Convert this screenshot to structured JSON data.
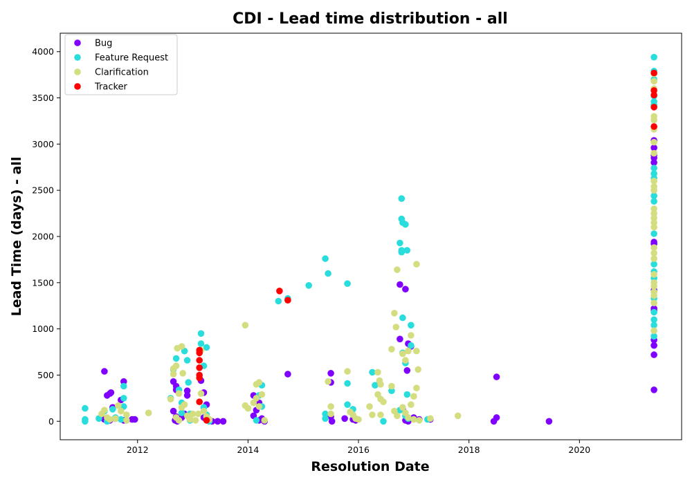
{
  "chart_data": {
    "type": "scatter",
    "title": "CDI - Lead time distribution - all",
    "xlabel": "Resolution Date",
    "ylabel": "Lead Time (days) - all",
    "xlim": [
      2010.6,
      2021.85
    ],
    "ylim": [
      -200,
      4200
    ],
    "xticks": [
      2012,
      2014,
      2016,
      2018,
      2020
    ],
    "yticks": [
      0,
      500,
      1000,
      1500,
      2000,
      2500,
      3000,
      3500,
      4000
    ],
    "grid": false,
    "legend_position": "top-left",
    "series": [
      {
        "name": "Bug",
        "color": "#8000ff",
        "points": [
          [
            2011.4,
            540
          ],
          [
            2011.45,
            280
          ],
          [
            2011.5,
            300
          ],
          [
            2011.52,
            310
          ],
          [
            2011.4,
            20
          ],
          [
            2011.5,
            10
          ],
          [
            2011.6,
            30
          ],
          [
            2011.55,
            150
          ],
          [
            2011.75,
            430
          ],
          [
            2011.7,
            230
          ],
          [
            2011.75,
            10
          ],
          [
            2011.9,
            20
          ],
          [
            2011.95,
            20
          ],
          [
            2012.65,
            430
          ],
          [
            2012.7,
            380
          ],
          [
            2012.7,
            340
          ],
          [
            2012.65,
            110
          ],
          [
            2012.7,
            50
          ],
          [
            2012.68,
            10
          ],
          [
            2012.72,
            0
          ],
          [
            2012.8,
            40
          ],
          [
            2012.9,
            330
          ],
          [
            2012.9,
            280
          ],
          [
            2012.95,
            20
          ],
          [
            2012.85,
            80
          ],
          [
            2013.15,
            440
          ],
          [
            2013.2,
            310
          ],
          [
            2013.25,
            180
          ],
          [
            2013.2,
            40
          ],
          [
            2013.3,
            10
          ],
          [
            2013.35,
            0
          ],
          [
            2013.45,
            0
          ],
          [
            2013.55,
            0
          ],
          [
            2014.1,
            280
          ],
          [
            2014.15,
            120
          ],
          [
            2014.2,
            200
          ],
          [
            2014.1,
            60
          ],
          [
            2014.2,
            10
          ],
          [
            2014.25,
            30
          ],
          [
            2014.3,
            0
          ],
          [
            2014.72,
            510
          ],
          [
            2015.5,
            520
          ],
          [
            2015.5,
            420
          ],
          [
            2015.5,
            50
          ],
          [
            2015.52,
            0
          ],
          [
            2015.75,
            30
          ],
          [
            2015.9,
            20
          ],
          [
            2015.95,
            10
          ],
          [
            2016.75,
            1480
          ],
          [
            2016.85,
            1430
          ],
          [
            2016.75,
            890
          ],
          [
            2016.9,
            840
          ],
          [
            2016.95,
            810
          ],
          [
            2016.88,
            550
          ],
          [
            2016.8,
            130
          ],
          [
            2016.85,
            10
          ],
          [
            2016.9,
            0
          ],
          [
            2017.0,
            40
          ],
          [
            2017.1,
            20
          ],
          [
            2017.3,
            20
          ],
          [
            2018.5,
            480
          ],
          [
            2018.5,
            40
          ],
          [
            2018.45,
            0
          ],
          [
            2019.45,
            0
          ],
          [
            2021.35,
            3040
          ],
          [
            2021.35,
            2960
          ],
          [
            2021.35,
            2880
          ],
          [
            2021.35,
            2850
          ],
          [
            2021.35,
            2800
          ],
          [
            2021.35,
            1940
          ],
          [
            2021.35,
            1920
          ],
          [
            2021.35,
            1420
          ],
          [
            2021.35,
            1220
          ],
          [
            2021.35,
            1200
          ],
          [
            2021.35,
            880
          ],
          [
            2021.35,
            820
          ],
          [
            2021.35,
            720
          ],
          [
            2021.35,
            340
          ]
        ]
      },
      {
        "name": "Feature Request",
        "color": "#2adddd",
        "points": [
          [
            2011.05,
            140
          ],
          [
            2011.05,
            20
          ],
          [
            2011.05,
            0
          ],
          [
            2011.3,
            30
          ],
          [
            2011.4,
            110
          ],
          [
            2011.45,
            0
          ],
          [
            2011.55,
            130
          ],
          [
            2011.6,
            40
          ],
          [
            2011.75,
            380
          ],
          [
            2011.75,
            250
          ],
          [
            2011.75,
            160
          ],
          [
            2011.7,
            20
          ],
          [
            2011.8,
            10
          ],
          [
            2012.6,
            250
          ],
          [
            2012.65,
            560
          ],
          [
            2012.7,
            680
          ],
          [
            2012.75,
            340
          ],
          [
            2012.8,
            200
          ],
          [
            2012.8,
            90
          ],
          [
            2012.85,
            760
          ],
          [
            2012.9,
            660
          ],
          [
            2012.92,
            420
          ],
          [
            2012.95,
            80
          ],
          [
            2012.95,
            10
          ],
          [
            2013.15,
            950
          ],
          [
            2013.15,
            840
          ],
          [
            2013.2,
            600
          ],
          [
            2013.25,
            800
          ],
          [
            2013.2,
            150
          ],
          [
            2013.25,
            70
          ],
          [
            2013.3,
            0
          ],
          [
            2014.15,
            10
          ],
          [
            2014.25,
            390
          ],
          [
            2014.2,
            280
          ],
          [
            2014.25,
            160
          ],
          [
            2014.55,
            1300
          ],
          [
            2014.72,
            1330
          ],
          [
            2015.1,
            1470
          ],
          [
            2015.4,
            1760
          ],
          [
            2015.45,
            1600
          ],
          [
            2015.4,
            80
          ],
          [
            2015.4,
            30
          ],
          [
            2015.8,
            1490
          ],
          [
            2015.8,
            410
          ],
          [
            2015.8,
            180
          ],
          [
            2015.9,
            130
          ],
          [
            2016.25,
            530
          ],
          [
            2016.3,
            390
          ],
          [
            2016.45,
            0
          ],
          [
            2016.6,
            330
          ],
          [
            2016.78,
            2410
          ],
          [
            2016.78,
            2190
          ],
          [
            2016.8,
            2150
          ],
          [
            2016.85,
            2130
          ],
          [
            2016.75,
            1930
          ],
          [
            2016.78,
            1850
          ],
          [
            2016.78,
            1830
          ],
          [
            2016.88,
            1850
          ],
          [
            2016.8,
            1120
          ],
          [
            2016.95,
            1040
          ],
          [
            2016.8,
            740
          ],
          [
            2016.85,
            630
          ],
          [
            2016.88,
            290
          ],
          [
            2016.75,
            120
          ],
          [
            2016.85,
            60
          ],
          [
            2016.9,
            30
          ],
          [
            2016.95,
            820
          ],
          [
            2017.25,
            20
          ],
          [
            2021.35,
            3940
          ],
          [
            2021.35,
            3790
          ],
          [
            2021.35,
            3700
          ],
          [
            2021.35,
            3520
          ],
          [
            2021.35,
            3460
          ],
          [
            2021.35,
            3420
          ],
          [
            2021.35,
            2740
          ],
          [
            2021.35,
            2680
          ],
          [
            2021.35,
            2630
          ],
          [
            2021.35,
            2440
          ],
          [
            2021.35,
            2380
          ],
          [
            2021.35,
            2030
          ],
          [
            2021.35,
            1700
          ],
          [
            2021.35,
            1620
          ],
          [
            2021.35,
            1550
          ],
          [
            2021.35,
            1330
          ],
          [
            2021.35,
            1180
          ],
          [
            2021.35,
            1100
          ],
          [
            2021.35,
            1040
          ],
          [
            2021.35,
            920
          ]
        ]
      },
      {
        "name": "Clarification",
        "color": "#d4dd80",
        "points": [
          [
            2011.35,
            80
          ],
          [
            2011.4,
            120
          ],
          [
            2011.45,
            40
          ],
          [
            2011.5,
            20
          ],
          [
            2011.6,
            30
          ],
          [
            2011.65,
            170
          ],
          [
            2011.7,
            110
          ],
          [
            2011.8,
            70
          ],
          [
            2011.8,
            10
          ],
          [
            2012.2,
            90
          ],
          [
            2012.6,
            240
          ],
          [
            2012.65,
            510
          ],
          [
            2012.65,
            570
          ],
          [
            2012.7,
            600
          ],
          [
            2012.72,
            790
          ],
          [
            2012.75,
            300
          ],
          [
            2012.8,
            150
          ],
          [
            2012.8,
            810
          ],
          [
            2012.82,
            520
          ],
          [
            2012.85,
            180
          ],
          [
            2012.7,
            40
          ],
          [
            2012.75,
            10
          ],
          [
            2012.9,
            60
          ],
          [
            2012.95,
            20
          ],
          [
            2013.0,
            80
          ],
          [
            2013.15,
            300
          ],
          [
            2013.2,
            110
          ],
          [
            2013.25,
            50
          ],
          [
            2013.1,
            80
          ],
          [
            2013.05,
            10
          ],
          [
            2013.15,
            770
          ],
          [
            2013.3,
            20
          ],
          [
            2013.95,
            1040
          ],
          [
            2013.95,
            170
          ],
          [
            2014.0,
            140
          ],
          [
            2014.15,
            400
          ],
          [
            2014.2,
            420
          ],
          [
            2014.15,
            250
          ],
          [
            2014.2,
            160
          ],
          [
            2014.25,
            290
          ],
          [
            2014.1,
            200
          ],
          [
            2014.3,
            10
          ],
          [
            2015.45,
            430
          ],
          [
            2015.5,
            160
          ],
          [
            2015.5,
            80
          ],
          [
            2015.8,
            540
          ],
          [
            2015.85,
            100
          ],
          [
            2015.9,
            70
          ],
          [
            2015.95,
            30
          ],
          [
            2016.0,
            20
          ],
          [
            2016.2,
            160
          ],
          [
            2016.25,
            70
          ],
          [
            2016.35,
            530
          ],
          [
            2016.38,
            440
          ],
          [
            2016.4,
            400
          ],
          [
            2016.35,
            290
          ],
          [
            2016.4,
            240
          ],
          [
            2016.45,
            210
          ],
          [
            2016.4,
            70
          ],
          [
            2016.6,
            780
          ],
          [
            2016.6,
            380
          ],
          [
            2016.65,
            1170
          ],
          [
            2016.68,
            1020
          ],
          [
            2016.7,
            1640
          ],
          [
            2016.65,
            110
          ],
          [
            2016.7,
            60
          ],
          [
            2016.8,
            730
          ],
          [
            2016.85,
            660
          ],
          [
            2016.9,
            760
          ],
          [
            2016.95,
            930
          ],
          [
            2017.05,
            1700
          ],
          [
            2017.05,
            760
          ],
          [
            2017.08,
            560
          ],
          [
            2017.05,
            360
          ],
          [
            2017.0,
            270
          ],
          [
            2016.95,
            180
          ],
          [
            2016.8,
            150
          ],
          [
            2016.85,
            90
          ],
          [
            2016.9,
            40
          ],
          [
            2017.0,
            20
          ],
          [
            2017.1,
            10
          ],
          [
            2017.3,
            30
          ],
          [
            2017.8,
            60
          ],
          [
            2021.35,
            3760
          ],
          [
            2021.35,
            3680
          ],
          [
            2021.35,
            3600
          ],
          [
            2021.35,
            3300
          ],
          [
            2021.35,
            3260
          ],
          [
            2021.35,
            3160
          ],
          [
            2021.35,
            3020
          ],
          [
            2021.35,
            2900
          ],
          [
            2021.35,
            2600
          ],
          [
            2021.35,
            2540
          ],
          [
            2021.35,
            2500
          ],
          [
            2021.35,
            2300
          ],
          [
            2021.35,
            2250
          ],
          [
            2021.35,
            2200
          ],
          [
            2021.35,
            2150
          ],
          [
            2021.35,
            2100
          ],
          [
            2021.35,
            1880
          ],
          [
            2021.35,
            1820
          ],
          [
            2021.35,
            1760
          ],
          [
            2021.35,
            1590
          ],
          [
            2021.35,
            1500
          ],
          [
            2021.35,
            1460
          ],
          [
            2021.35,
            1400
          ],
          [
            2021.35,
            1360
          ],
          [
            2021.35,
            1280
          ],
          [
            2021.35,
            980
          ]
        ]
      },
      {
        "name": "Tracker",
        "color": "#ff0000",
        "points": [
          [
            2013.12,
            770
          ],
          [
            2013.12,
            740
          ],
          [
            2013.12,
            660
          ],
          [
            2013.12,
            580
          ],
          [
            2013.12,
            500
          ],
          [
            2013.12,
            470
          ],
          [
            2013.12,
            210
          ],
          [
            2013.25,
            10
          ],
          [
            2014.57,
            1410
          ],
          [
            2014.72,
            1310
          ],
          [
            2021.35,
            3770
          ],
          [
            2021.35,
            3580
          ],
          [
            2021.35,
            3530
          ],
          [
            2021.35,
            3400
          ],
          [
            2021.35,
            3190
          ]
        ]
      }
    ]
  }
}
